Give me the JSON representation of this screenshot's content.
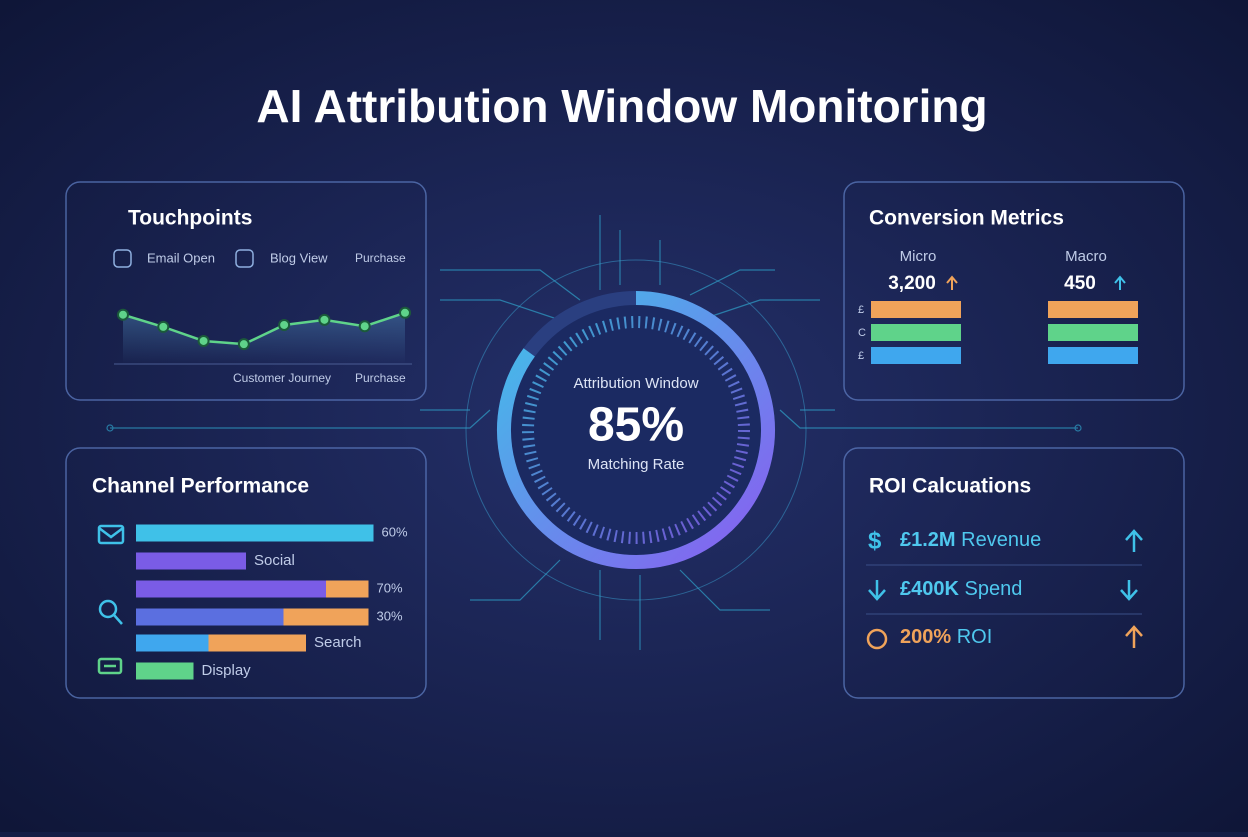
{
  "title": "AI Attribution Window Monitoring",
  "touchpoints": {
    "title": "Touchpoints",
    "legend": [
      "Email Open",
      "Blog View",
      "Purchase"
    ],
    "chart_data": {
      "type": "line",
      "values": [
        77,
        58,
        36,
        31,
        61,
        69,
        59,
        80
      ],
      "ylim": [
        0,
        100
      ],
      "color": "#5fd38a"
    },
    "axis_labels": [
      "Customer Journey",
      "Purchase"
    ]
  },
  "conversion": {
    "title": "Conversion Metrics",
    "bar_labels": [
      "£",
      "C",
      "£"
    ],
    "metrics": [
      {
        "name": "Micro",
        "value": {
          "value": 3200,
          "label": "3,200"
        }
      },
      {
        "name": "Macro",
        "value": {
          "value": 450,
          "label": "450"
        }
      }
    ]
  },
  "gauge": {
    "title": "Attribution Window",
    "value": {
      "value": 85,
      "label": "85%"
    },
    "subtitle": "Matching Rate"
  },
  "channels": {
    "title": "Channel Performance",
    "xlim": [
      0,
      100
    ],
    "rows": [
      {
        "label": "60%",
        "segments": [
          95
        ],
        "colors": [
          "#3fc1e8"
        ]
      },
      {
        "label": "Social",
        "segments": [
          44
        ],
        "colors": [
          "#7a5ce6"
        ]
      },
      {
        "label": "70%",
        "segments": [
          76,
          17
        ],
        "colors": [
          "#7a5ce6",
          "#f0a35a"
        ]
      },
      {
        "label": "30%",
        "segments": [
          59,
          34
        ],
        "colors": [
          "#5b6fe0",
          "#f0a35a"
        ]
      },
      {
        "label": "Search",
        "segments": [
          29,
          39
        ],
        "colors": [
          "#3fa7ee",
          "#f0a35a"
        ]
      },
      {
        "label": "Display",
        "segments": [
          23
        ],
        "colors": [
          "#5fd38a"
        ]
      }
    ]
  },
  "roi": {
    "title": "ROI Calcuations",
    "rows": [
      {
        "amount": "£1.2M",
        "label": "Revenue"
      },
      {
        "amount": "£400K",
        "label": "Spend"
      },
      {
        "amount": "200%",
        "label": "ROI"
      }
    ]
  }
}
